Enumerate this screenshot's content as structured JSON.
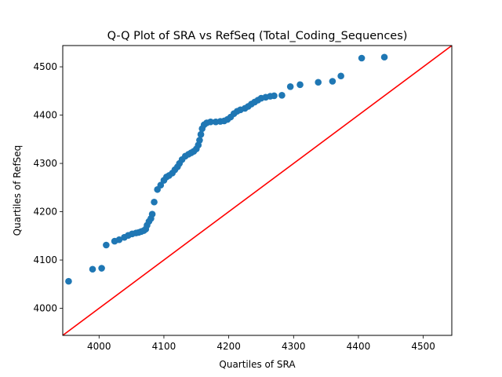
{
  "chart_data": {
    "type": "scatter",
    "title": "Q-Q Plot of SRA vs RefSeq (Total_Coding_Sequences)",
    "xlabel": "Quartiles of SRA",
    "ylabel": "Quartiles of RefSeq",
    "xlim": [
      3944,
      4544
    ],
    "ylim": [
      3944,
      4544
    ],
    "xticks": [
      4000,
      4100,
      4200,
      4300,
      4400,
      4500
    ],
    "yticks": [
      4000,
      4100,
      4200,
      4300,
      4400,
      4500
    ],
    "grid": false,
    "legend": "none",
    "marker_color": "#1f77b4",
    "reference_line": {
      "points": [
        [
          3944,
          3944
        ],
        [
          4544,
          4544
        ]
      ],
      "color": "#ff0000"
    },
    "points": [
      [
        3953,
        4056
      ],
      [
        3990,
        4081
      ],
      [
        4004,
        4083
      ],
      [
        4011,
        4131
      ],
      [
        4024,
        4139
      ],
      [
        4031,
        4142
      ],
      [
        4039,
        4147
      ],
      [
        4045,
        4151
      ],
      [
        4051,
        4154
      ],
      [
        4057,
        4156
      ],
      [
        4061,
        4157
      ],
      [
        4065,
        4159
      ],
      [
        4069,
        4161
      ],
      [
        4072,
        4164
      ],
      [
        4074,
        4172
      ],
      [
        4077,
        4180
      ],
      [
        4080,
        4186
      ],
      [
        4082,
        4195
      ],
      [
        4085,
        4220
      ],
      [
        4090,
        4246
      ],
      [
        4095,
        4255
      ],
      [
        4100,
        4265
      ],
      [
        4104,
        4272
      ],
      [
        4108,
        4275
      ],
      [
        4113,
        4280
      ],
      [
        4117,
        4287
      ],
      [
        4121,
        4293
      ],
      [
        4124,
        4300
      ],
      [
        4128,
        4308
      ],
      [
        4133,
        4315
      ],
      [
        4138,
        4319
      ],
      [
        4142,
        4322
      ],
      [
        4146,
        4325
      ],
      [
        4150,
        4330
      ],
      [
        4153,
        4338
      ],
      [
        4155,
        4348
      ],
      [
        4157,
        4360
      ],
      [
        4159,
        4372
      ],
      [
        4162,
        4380
      ],
      [
        4166,
        4384
      ],
      [
        4172,
        4386
      ],
      [
        4180,
        4386
      ],
      [
        4187,
        4387
      ],
      [
        4193,
        4388
      ],
      [
        4198,
        4391
      ],
      [
        4203,
        4396
      ],
      [
        4208,
        4403
      ],
      [
        4213,
        4408
      ],
      [
        4218,
        4411
      ],
      [
        4225,
        4414
      ],
      [
        4230,
        4418
      ],
      [
        4235,
        4423
      ],
      [
        4240,
        4427
      ],
      [
        4245,
        4431
      ],
      [
        4250,
        4435
      ],
      [
        4257,
        4437
      ],
      [
        4264,
        4439
      ],
      [
        4270,
        4440
      ],
      [
        4282,
        4441
      ],
      [
        4295,
        4459
      ],
      [
        4310,
        4463
      ],
      [
        4338,
        4468
      ],
      [
        4360,
        4470
      ],
      [
        4373,
        4481
      ],
      [
        4405,
        4518
      ],
      [
        4440,
        4520
      ]
    ]
  }
}
